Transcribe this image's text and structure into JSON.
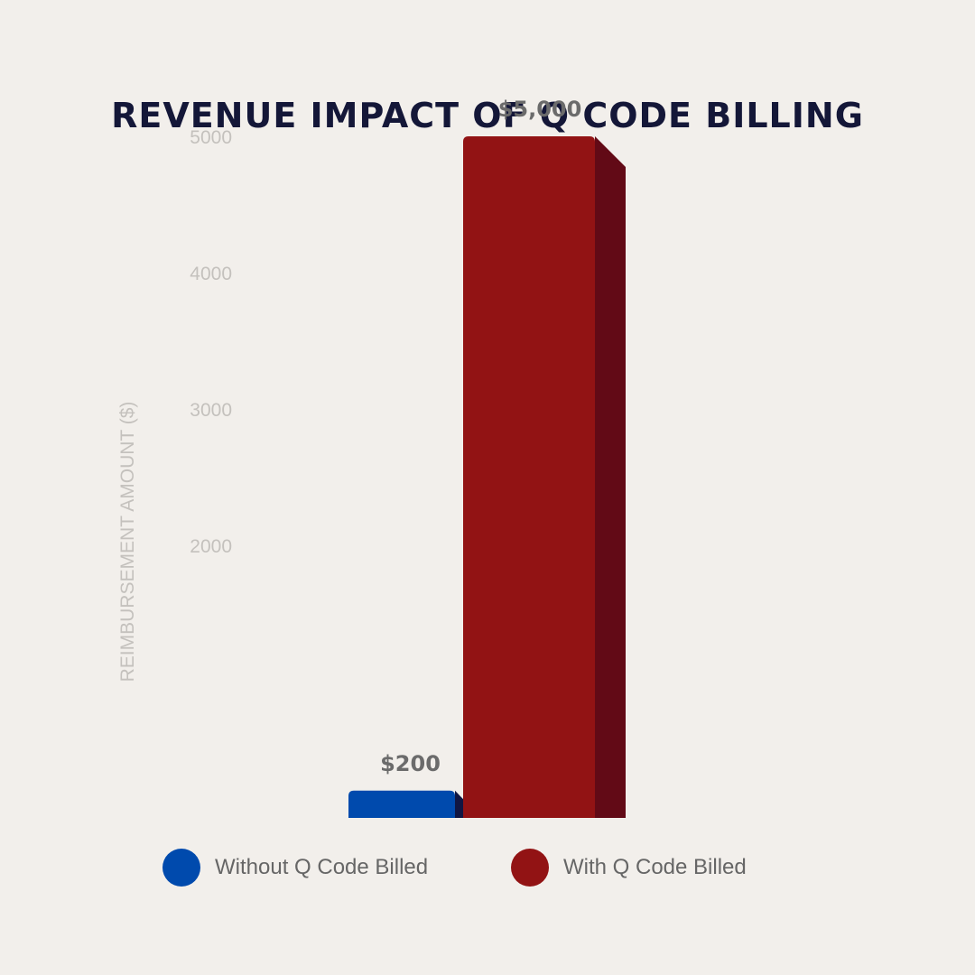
{
  "chart_data": {
    "type": "bar",
    "title": "REVENUE IMPACT OF Q CODE BILLING",
    "ylabel": "REIMBURSEMENT AMOUNT ($)",
    "xlabel": "",
    "yticks": [
      2000,
      3000,
      4000,
      5000
    ],
    "ylim": [
      0,
      5000
    ],
    "grid": false,
    "legend_position": "bottom",
    "series": [
      {
        "name": "Without Q Code Billed",
        "value": 200,
        "label": "$200",
        "color": "#004aad",
        "shade": "#111642"
      },
      {
        "name": "With Q Code Billed",
        "value": 5000,
        "label": "$5,000",
        "color": "#921314",
        "shade": "#620a16"
      }
    ]
  }
}
